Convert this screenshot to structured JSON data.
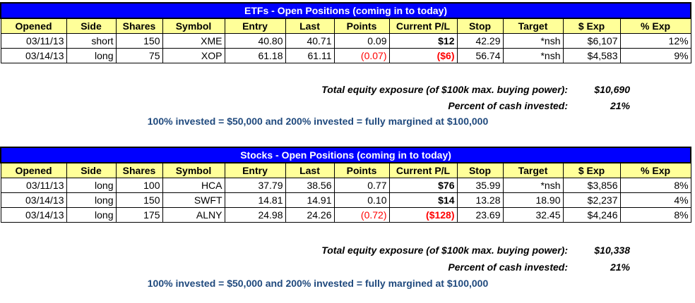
{
  "etfs": {
    "title": "ETFs - Open Positions (coming in to today)",
    "headers": [
      "Opened",
      "Side",
      "Shares",
      "Symbol",
      "Entry",
      "Last",
      "Points",
      "Current P/L",
      "Stop",
      "Target",
      "$ Exp",
      "% Exp"
    ],
    "rows": [
      [
        "03/11/13",
        "short",
        "150",
        "XME",
        "40.80",
        "40.71",
        "0.09",
        "$12",
        "42.29",
        "*nsh",
        "$6,107",
        "12%"
      ],
      [
        "03/14/13",
        "long",
        "75",
        "XOP",
        "61.18",
        "61.11",
        "(0.07)",
        "($6)",
        "56.74",
        "*nsh",
        "$4,583",
        "9%"
      ]
    ],
    "exposure_label": "Total equity exposure (of $100k max. buying power):",
    "exposure_value": "$10,690",
    "percent_label": "Percent of cash invested:",
    "percent_value": "21%",
    "note": "100% invested = $50,000 and 200% invested = fully margined at $100,000"
  },
  "stocks": {
    "title": "Stocks - Open Positions (coming in to today)",
    "headers": [
      "Opened",
      "Side",
      "Shares",
      "Symbol",
      "Entry",
      "Last",
      "Points",
      "Current P/L",
      "Stop",
      "Target",
      "$ Exp",
      "% Exp"
    ],
    "rows": [
      [
        "03/11/13",
        "long",
        "100",
        "HCA",
        "37.79",
        "38.56",
        "0.77",
        "$76",
        "35.99",
        "*nsh",
        "$3,856",
        "8%"
      ],
      [
        "03/14/13",
        "long",
        "150",
        "SWFT",
        "14.81",
        "14.91",
        "0.10",
        "$14",
        "13.28",
        "18.90",
        "$2,237",
        "4%"
      ],
      [
        "03/14/13",
        "long",
        "175",
        "ALNY",
        "24.98",
        "24.26",
        "(0.72)",
        "($128)",
        "23.69",
        "32.45",
        "$4,246",
        "8%"
      ]
    ],
    "exposure_label": "Total equity exposure (of $100k max. buying power):",
    "exposure_value": "$10,338",
    "percent_label": "Percent of cash invested:",
    "percent_value": "21%",
    "note": "100% invested = $50,000 and 200% invested = fully margined at $100,000"
  },
  "colors": {
    "title_bg": "#0000ff",
    "header_bg": "#ffff99",
    "negative": "#ff0000",
    "note": "#1f497d"
  }
}
